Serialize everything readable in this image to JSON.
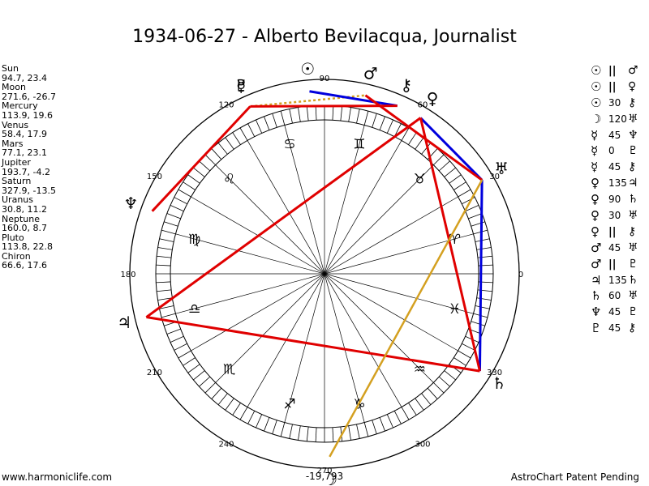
{
  "title": "1934-06-27 - Alberto Bevilacqua, Journalist",
  "positions": [
    {
      "planet": "Sun",
      "coords": "94.7, 23.4"
    },
    {
      "planet": "Moon",
      "coords": "271.6, -26.7"
    },
    {
      "planet": "Mercury",
      "coords": "113.9, 19.6"
    },
    {
      "planet": "Venus",
      "coords": "58.4, 17.9"
    },
    {
      "planet": "Mars",
      "coords": "77.1, 23.1"
    },
    {
      "planet": "Jupiter",
      "coords": "193.7, -4.2"
    },
    {
      "planet": "Saturn",
      "coords": "327.9, -13.5"
    },
    {
      "planet": "Uranus",
      "coords": "30.8, 11.2"
    },
    {
      "planet": "Neptune",
      "coords": "160.0, 8.7"
    },
    {
      "planet": "Pluto",
      "coords": "113.8, 22.8"
    },
    {
      "planet": "Chiron",
      "coords": "66.6, 17.6"
    }
  ],
  "aspects": [
    {
      "p1": "☉",
      "aspect": "||",
      "p2": "♂"
    },
    {
      "p1": "☉",
      "aspect": "||",
      "p2": "♀"
    },
    {
      "p1": "☉",
      "aspect": "30",
      "p2": "⚷"
    },
    {
      "p1": "☽",
      "aspect": "120",
      "p2": "♅"
    },
    {
      "p1": "☿",
      "aspect": "45",
      "p2": "♆"
    },
    {
      "p1": "☿",
      "aspect": "0",
      "p2": "♇"
    },
    {
      "p1": "☿",
      "aspect": "45",
      "p2": "⚷"
    },
    {
      "p1": "♀",
      "aspect": "135",
      "p2": "♃"
    },
    {
      "p1": "♀",
      "aspect": "90",
      "p2": "♄"
    },
    {
      "p1": "♀",
      "aspect": "30",
      "p2": "♅"
    },
    {
      "p1": "♀",
      "aspect": "||",
      "p2": "⚷"
    },
    {
      "p1": "♂",
      "aspect": "45",
      "p2": "♅"
    },
    {
      "p1": "♂",
      "aspect": "||",
      "p2": "♇"
    },
    {
      "p1": "♃",
      "aspect": "135",
      "p2": "♄"
    },
    {
      "p1": "♄",
      "aspect": "60",
      "p2": "♅"
    },
    {
      "p1": "♆",
      "aspect": "45",
      "p2": "♇"
    },
    {
      "p1": "♇",
      "aspect": "45",
      "p2": "⚷"
    }
  ],
  "footer": {
    "left": "www.harmoniclife.com",
    "right": "AstroChart Patent Pending"
  },
  "colors": {
    "red_aspect": "#e00000",
    "blue_aspect": "#0000dd",
    "gold_aspect": "#d4a020",
    "dotted_aspect": "#d4a020",
    "wheel": "#000000"
  },
  "chart_data": {
    "type": "astrological-wheel",
    "degree_labels": [
      "0",
      "30",
      "60",
      "90",
      "120",
      "150",
      "180",
      "210",
      "240",
      "270",
      "300",
      "330"
    ],
    "bottom_readout": "-19,793",
    "planets": [
      {
        "name": "Sun",
        "glyph": "☉",
        "longitude": 94.7
      },
      {
        "name": "Moon",
        "glyph": "☽",
        "longitude": 271.6
      },
      {
        "name": "Mercury",
        "glyph": "☿",
        "longitude": 113.9
      },
      {
        "name": "Venus",
        "glyph": "♀",
        "longitude": 58.4
      },
      {
        "name": "Mars",
        "glyph": "♂",
        "longitude": 77.1
      },
      {
        "name": "Jupiter",
        "glyph": "♃",
        "longitude": 193.7
      },
      {
        "name": "Saturn",
        "glyph": "♄",
        "longitude": 327.9
      },
      {
        "name": "Uranus",
        "glyph": "♅",
        "longitude": 30.8
      },
      {
        "name": "Neptune",
        "glyph": "♆",
        "longitude": 160.0
      },
      {
        "name": "Pluto",
        "glyph": "♇",
        "longitude": 113.8
      },
      {
        "name": "Chiron",
        "glyph": "⚷",
        "longitude": 66.6
      }
    ],
    "signs": [
      {
        "glyph": "♈",
        "longitude": 15
      },
      {
        "glyph": "♉",
        "longitude": 45
      },
      {
        "glyph": "♊",
        "longitude": 75
      },
      {
        "glyph": "♋",
        "longitude": 105
      },
      {
        "glyph": "♌",
        "longitude": 135
      },
      {
        "glyph": "♍",
        "longitude": 165
      },
      {
        "glyph": "♎",
        "longitude": 195
      },
      {
        "glyph": "♏",
        "longitude": 225
      },
      {
        "glyph": "♐",
        "longitude": 255
      },
      {
        "glyph": "♑",
        "longitude": 285
      },
      {
        "glyph": "♒",
        "longitude": 315
      },
      {
        "glyph": "♓",
        "longitude": 345
      }
    ],
    "aspect_lines": [
      {
        "from": "Mercury",
        "to": "Mars",
        "color": "dotted"
      },
      {
        "from": "Sun",
        "to": "Chiron",
        "color": "blue"
      },
      {
        "from": "Venus",
        "to": "Uranus",
        "color": "blue"
      },
      {
        "from": "Uranus",
        "to": "Saturn",
        "color": "blue"
      },
      {
        "from": "Mercury",
        "to": "Chiron",
        "color": "red"
      },
      {
        "from": "Mercury",
        "to": "Neptune",
        "color": "red"
      },
      {
        "from": "Venus",
        "to": "Jupiter",
        "color": "red"
      },
      {
        "from": "Venus",
        "to": "Saturn",
        "color": "red"
      },
      {
        "from": "Mars",
        "to": "Uranus",
        "color": "red"
      },
      {
        "from": "Jupiter",
        "to": "Saturn",
        "color": "red"
      },
      {
        "from": "Moon",
        "to": "Uranus",
        "color": "gold"
      }
    ]
  }
}
